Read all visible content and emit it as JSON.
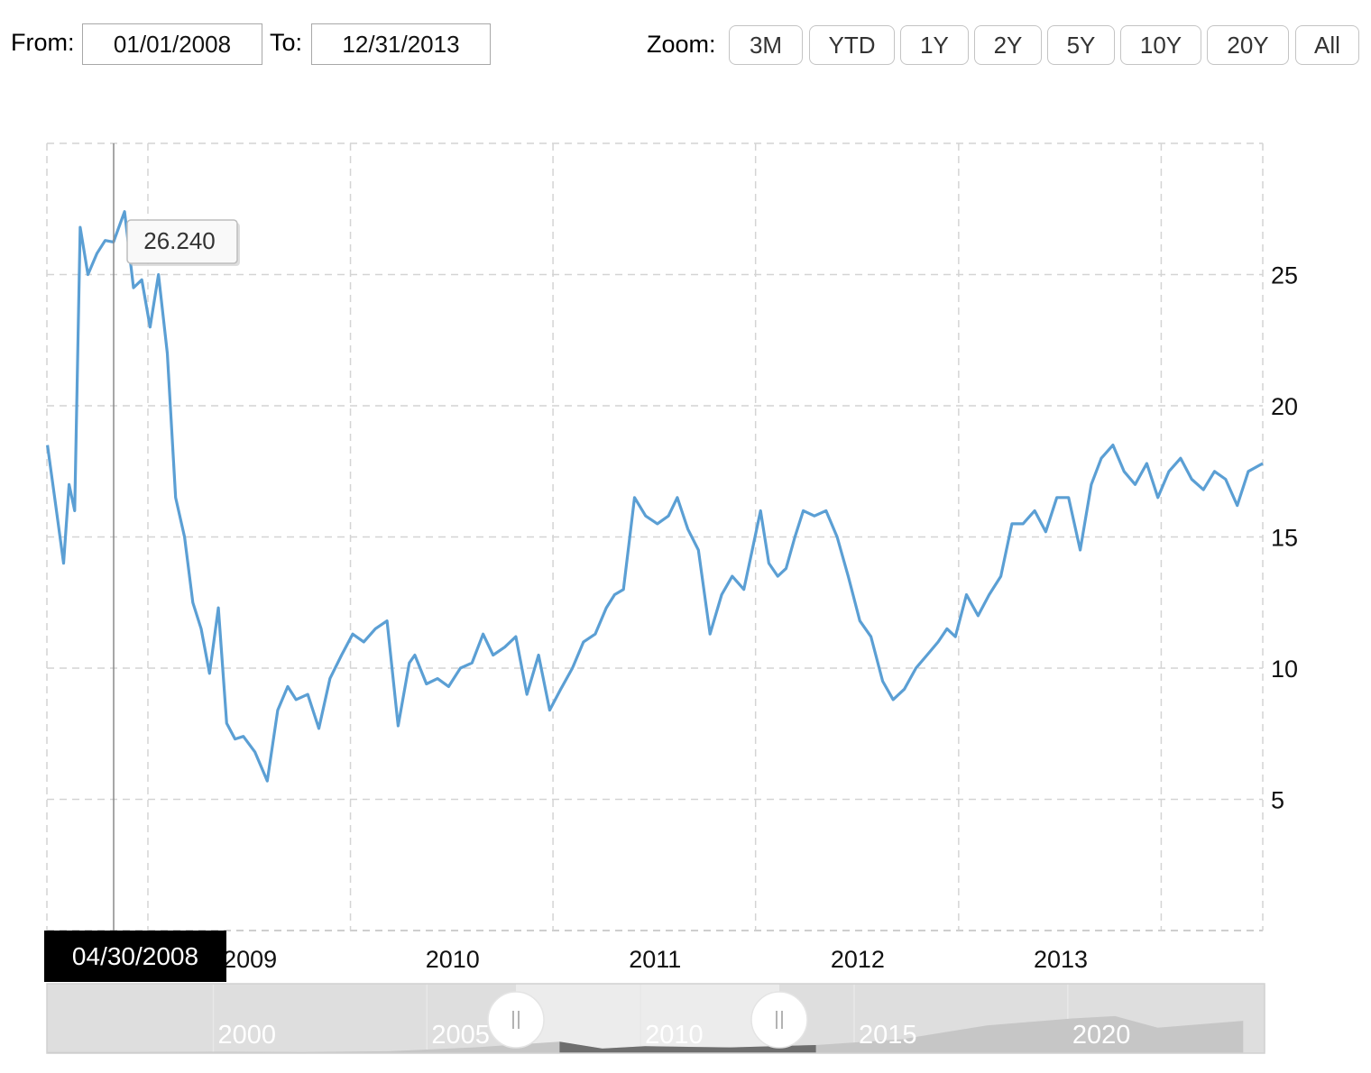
{
  "range": {
    "from_label": "From:",
    "from_value": "01/01/2008",
    "to_label": "To:",
    "to_value": "12/31/2013"
  },
  "zoom": {
    "label": "Zoom:",
    "buttons": [
      "3M",
      "YTD",
      "1Y",
      "2Y",
      "5Y",
      "10Y",
      "20Y",
      "All"
    ]
  },
  "tooltip": {
    "value": "26.240",
    "date": "04/30/2008"
  },
  "navigator": {
    "labels": [
      "2000",
      "2005",
      "2010",
      "2015",
      "2020"
    ]
  },
  "colors": {
    "line": "#5b9fd4",
    "grid": "#d4d4d4",
    "crosshair_bg": "#000000"
  },
  "chart_data": {
    "type": "line",
    "title": "",
    "xlabel": "",
    "ylabel": "",
    "xlim": [
      "2008-01-01",
      "2013-12-31"
    ],
    "ylim": [
      0,
      30
    ],
    "y_ticks": [
      5,
      10,
      15,
      20,
      25
    ],
    "x_ticks": [
      "2009",
      "2010",
      "2011",
      "2012",
      "2013"
    ],
    "y_axis_side": "right",
    "grid": true,
    "series": [
      {
        "x": [
          "2008-01-02",
          "2008-01-15",
          "2008-01-31",
          "2008-02-10",
          "2008-02-20",
          "2008-03-01",
          "2008-03-15",
          "2008-03-31",
          "2008-04-15",
          "2008-04-30",
          "2008-05-20",
          "2008-06-05",
          "2008-06-20",
          "2008-07-05",
          "2008-07-20",
          "2008-08-05",
          "2008-08-20",
          "2008-09-05",
          "2008-09-20",
          "2008-10-05",
          "2008-10-20",
          "2008-11-05",
          "2008-11-20",
          "2008-12-05",
          "2008-12-20",
          "2009-01-10",
          "2009-02-01",
          "2009-02-20",
          "2009-03-10",
          "2009-03-25",
          "2009-04-15",
          "2009-05-05",
          "2009-05-25",
          "2009-06-15",
          "2009-07-05",
          "2009-07-25",
          "2009-08-15",
          "2009-09-05",
          "2009-09-25",
          "2009-10-15",
          "2009-10-25",
          "2009-11-15",
          "2009-12-05",
          "2009-12-25",
          "2010-01-15",
          "2010-02-05",
          "2010-02-25",
          "2010-03-15",
          "2010-04-05",
          "2010-04-25",
          "2010-05-15",
          "2010-06-05",
          "2010-06-25",
          "2010-07-15",
          "2010-08-05",
          "2010-08-25",
          "2010-09-15",
          "2010-10-05",
          "2010-10-20",
          "2010-11-05",
          "2010-11-25",
          "2010-12-15",
          "2011-01-05",
          "2011-01-25",
          "2011-02-10",
          "2011-03-01",
          "2011-03-20",
          "2011-04-10",
          "2011-05-01",
          "2011-05-20",
          "2011-06-10",
          "2011-06-25",
          "2011-07-10",
          "2011-07-25",
          "2011-08-10",
          "2011-08-25",
          "2011-09-10",
          "2011-09-25",
          "2011-10-15",
          "2011-11-05",
          "2011-11-25",
          "2011-12-15",
          "2012-01-05",
          "2012-01-25",
          "2012-02-15",
          "2012-03-05",
          "2012-03-25",
          "2012-04-15",
          "2012-05-05",
          "2012-05-25",
          "2012-06-10",
          "2012-06-25",
          "2012-07-15",
          "2012-08-05",
          "2012-08-25",
          "2012-09-15",
          "2012-10-05",
          "2012-10-25",
          "2012-11-15",
          "2012-12-05",
          "2012-12-25",
          "2013-01-15",
          "2013-02-05",
          "2013-02-25",
          "2013-03-15",
          "2013-04-05",
          "2013-04-25",
          "2013-05-15",
          "2013-06-05",
          "2013-06-25",
          "2013-07-15",
          "2013-08-05",
          "2013-08-25",
          "2013-09-15",
          "2013-10-05",
          "2013-10-25",
          "2013-11-15",
          "2013-12-05",
          "2013-12-31"
        ],
        "y": [
          18.5,
          16.5,
          14.0,
          17.0,
          16.0,
          26.8,
          25.0,
          25.8,
          26.3,
          26.24,
          27.4,
          24.5,
          24.8,
          23.0,
          25.0,
          22.0,
          16.5,
          15.0,
          12.5,
          11.5,
          9.8,
          12.3,
          7.9,
          7.3,
          7.4,
          6.8,
          5.7,
          8.4,
          9.3,
          8.8,
          9.0,
          7.7,
          9.6,
          10.5,
          11.3,
          11.0,
          11.5,
          11.8,
          7.8,
          10.2,
          10.5,
          9.4,
          9.6,
          9.3,
          10.0,
          10.2,
          11.3,
          10.5,
          10.8,
          11.2,
          9.0,
          10.5,
          8.4,
          9.2,
          10.0,
          11.0,
          11.3,
          12.3,
          12.8,
          13.0,
          16.5,
          15.8,
          15.5,
          15.8,
          16.5,
          15.3,
          14.5,
          11.3,
          12.8,
          13.5,
          13.0,
          14.5,
          16.0,
          14.0,
          13.5,
          13.8,
          15.0,
          16.0,
          15.8,
          16.0,
          15.0,
          13.5,
          11.8,
          11.2,
          9.5,
          8.8,
          9.2,
          10.0,
          10.5,
          11.0,
          11.5,
          11.2,
          12.8,
          12.0,
          12.8,
          13.5,
          15.5,
          15.5,
          16.0,
          15.2,
          16.5,
          16.5,
          14.5,
          17.0,
          18.0,
          18.5,
          17.5,
          17.0,
          17.8,
          16.5,
          17.5,
          18.0,
          17.2,
          16.8,
          17.5,
          17.2,
          16.2,
          17.5,
          17.8
        ]
      }
    ],
    "navigator": {
      "x": [
        1996,
        1998,
        2000,
        2002,
        2004,
        2006,
        2008,
        2009,
        2010,
        2012,
        2014,
        2016,
        2018,
        2020,
        2021,
        2022,
        2024
      ],
      "y": [
        0.5,
        0.5,
        0.6,
        0.5,
        0.8,
        2.5,
        5.0,
        2.0,
        3.0,
        2.5,
        3.5,
        6.0,
        12.0,
        15.0,
        16.0,
        11.0,
        14.0
      ]
    }
  }
}
